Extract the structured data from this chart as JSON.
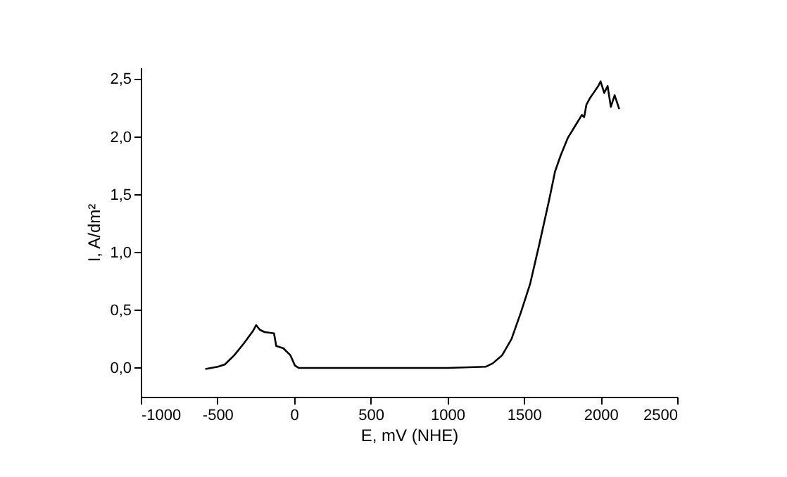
{
  "chart_data": {
    "type": "line",
    "xlabel": "E, mV (NHE)",
    "ylabel": "I, A/dm²",
    "x": [
      -579,
      -497,
      -451,
      -390,
      -329,
      -268,
      -247,
      -223,
      -192,
      -131,
      -116,
      -70,
      -24,
      6,
      30,
      200,
      500,
      800,
      1000,
      1250,
      1297,
      1358,
      1419,
      1480,
      1541,
      1602,
      1664,
      1703,
      1740,
      1786,
      1832,
      1878,
      1893,
      1908,
      1933,
      1954,
      1985,
      2000,
      2024,
      2046,
      2067,
      2092,
      2122
    ],
    "series": [
      {
        "color": "#000000",
        "values": [
          -0.01,
          0.01,
          0.03,
          0.11,
          0.21,
          0.32,
          0.37,
          0.33,
          0.31,
          0.3,
          0.19,
          0.17,
          0.11,
          0.02,
          0,
          0,
          0,
          0,
          0,
          0.01,
          0.04,
          0.11,
          0.25,
          0.48,
          0.73,
          1.08,
          1.45,
          1.7,
          1.84,
          1.99,
          2.09,
          2.19,
          2.17,
          2.28,
          2.34,
          2.38,
          2.44,
          2.48,
          2.38,
          2.44,
          2.26,
          2.36,
          2.24
        ]
      }
    ],
    "xlim": [
      -1000,
      2500
    ],
    "xticks": [
      -1000,
      -500,
      0,
      500,
      1000,
      1500,
      2000,
      2500
    ],
    "ylim": [
      -0.25,
      2.6
    ],
    "yticks": [
      {
        "value": 0,
        "label": "0,0"
      },
      {
        "value": 0.5,
        "label": "0,5"
      },
      {
        "value": 1,
        "label": "1,0"
      },
      {
        "value": 1.5,
        "label": "1,5"
      },
      {
        "value": 2,
        "label": "2,0"
      },
      {
        "value": 2.5,
        "label": "2,5"
      }
    ],
    "grid": false,
    "marker": "none",
    "line_style": "solid"
  }
}
